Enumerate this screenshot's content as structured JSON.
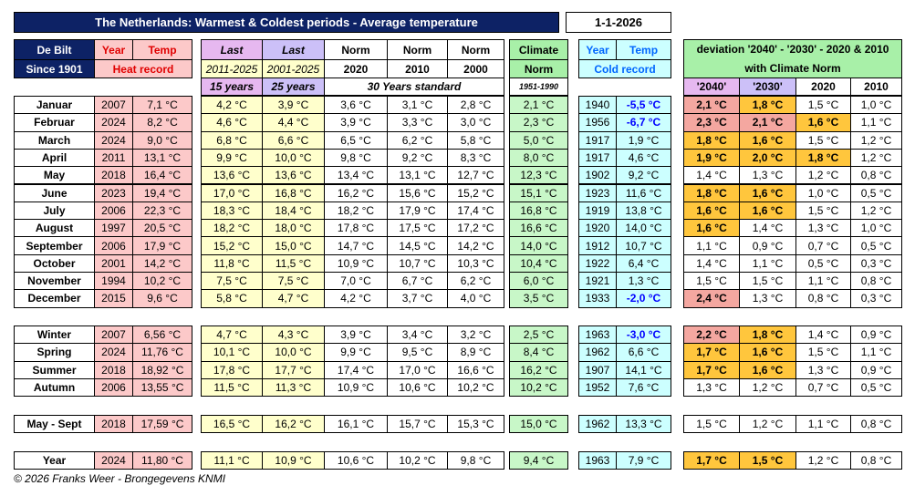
{
  "header": {
    "title": "The Netherlands:  Warmest & Coldest periods -  Average temperature",
    "date": "1-1-2026"
  },
  "columns": {
    "station": [
      "De Bilt",
      "Since 1901"
    ],
    "heat": [
      "Year",
      "Temp",
      "Heat record"
    ],
    "last15": [
      "Last",
      "2011-2025",
      "15 years"
    ],
    "last25": [
      "Last",
      "2001-2025",
      "25 years"
    ],
    "norms": [
      [
        "Norm",
        "2020"
      ],
      [
        "Norm",
        "2010"
      ],
      [
        "Norm",
        "2000"
      ]
    ],
    "norm_note": "30 Years standard",
    "climate": [
      "Climate",
      "Norm",
      "1951-1990"
    ],
    "cold": [
      "Year",
      "Temp",
      "Cold record"
    ],
    "deviation": [
      "deviation '2040' - '2030' - 2020  & 2010",
      "with Climate Norm"
    ],
    "deviation_cols": [
      "'2040'",
      "'2030'",
      "2020",
      "2010"
    ]
  },
  "table": {
    "groups": [
      {
        "rows": [
          {
            "cells": [
              "Januar",
              "2007",
              "7,1 °C",
              "4,2 °C",
              "3,9 °C",
              "3,6 °C",
              "3,1 °C",
              "2,8 °C",
              "2,1 °C",
              "1940",
              "-5,5 °C",
              "2,1 °C",
              "1,8 °C",
              "1,5 °C",
              "1,0 °C"
            ],
            "deviation_colors": [
              "#f4a7a0",
              "#ffc63d",
              null,
              null
            ],
            "cold_color": "#0000ff"
          },
          {
            "cells": [
              "Februar",
              "2024",
              "8,2 °C",
              "4,6 °C",
              "4,4 °C",
              "3,9 °C",
              "3,3 °C",
              "3,0 °C",
              "2,3 °C",
              "1956",
              "-6,7 °C",
              "2,3 °C",
              "2,1 °C",
              "1,6 °C",
              "1,1 °C"
            ],
            "deviation_colors": [
              "#f4a7a0",
              "#f4a7a0",
              "#ffc63d",
              null
            ],
            "cold_color": "#0000ff"
          },
          {
            "cells": [
              "March",
              "2024",
              "9,0 °C",
              "6,8 °C",
              "6,6 °C",
              "6,5 °C",
              "6,2 °C",
              "5,8 °C",
              "5,0 °C",
              "1917",
              "1,9 °C",
              "1,8 °C",
              "1,6 °C",
              "1,5 °C",
              "1,2 °C"
            ],
            "deviation_colors": [
              "#ffc63d",
              "#ffc63d",
              null,
              null
            ]
          },
          {
            "cells": [
              "April",
              "2011",
              "13,1 °C",
              "9,9 °C",
              "10,0 °C",
              "9,8 °C",
              "9,2 °C",
              "8,3 °C",
              "8,0 °C",
              "1917",
              "4,6 °C",
              "1,9 °C",
              "2,0 °C",
              "1,8 °C",
              "1,2 °C"
            ],
            "deviation_colors": [
              "#ffc63d",
              "#ffc63d",
              "#ffc63d",
              null
            ]
          },
          {
            "cells": [
              "May",
              "2018",
              "16,4 °C",
              "13,6 °C",
              "13,6 °C",
              "13,4 °C",
              "13,1 °C",
              "12,7 °C",
              "12,3 °C",
              "1902",
              "9,2 °C",
              "1,4 °C",
              "1,3 °C",
              "1,2 °C",
              "0,8 °C"
            ],
            "deviation_colors": [
              null,
              null,
              null,
              null
            ]
          },
          {
            "cells": [
              "June",
              "2023",
              "19,4 °C",
              "17,0 °C",
              "16,8 °C",
              "16,2 °C",
              "15,6 °C",
              "15,2 °C",
              "15,1 °C",
              "1923",
              "11,6 °C",
              "1,8 °C",
              "1,6 °C",
              "1,0 °C",
              "0,5 °C"
            ],
            "deviation_colors": [
              "#ffc63d",
              "#ffc63d",
              null,
              null
            ]
          },
          {
            "cells": [
              "July",
              "2006",
              "22,3 °C",
              "18,3 °C",
              "18,4 °C",
              "18,2 °C",
              "17,9 °C",
              "17,4 °C",
              "16,8 °C",
              "1919",
              "13,8 °C",
              "1,6 °C",
              "1,6 °C",
              "1,5 °C",
              "1,2 °C"
            ],
            "deviation_colors": [
              "#ffc63d",
              "#ffc63d",
              null,
              null
            ]
          },
          {
            "cells": [
              "August",
              "1997",
              "20,5 °C",
              "18,2 °C",
              "18,0 °C",
              "17,8 °C",
              "17,5 °C",
              "17,2 °C",
              "16,6 °C",
              "1920",
              "14,0 °C",
              "1,6 °C",
              "1,4 °C",
              "1,3 °C",
              "1,0 °C"
            ],
            "deviation_colors": [
              "#ffc63d",
              null,
              null,
              null
            ]
          },
          {
            "cells": [
              "September",
              "2006",
              "17,9 °C",
              "15,2 °C",
              "15,0 °C",
              "14,7 °C",
              "14,5 °C",
              "14,2 °C",
              "14,0 °C",
              "1912",
              "10,7 °C",
              "1,1 °C",
              "0,9 °C",
              "0,7 °C",
              "0,5 °C"
            ],
            "deviation_colors": [
              null,
              null,
              null,
              null
            ]
          },
          {
            "cells": [
              "October",
              "2001",
              "14,2 °C",
              "11,8 °C",
              "11,5 °C",
              "10,9 °C",
              "10,7 °C",
              "10,3 °C",
              "10,4 °C",
              "1922",
              "6,4 °C",
              "1,4 °C",
              "1,1 °C",
              "0,5 °C",
              "0,3 °C"
            ],
            "deviation_colors": [
              null,
              null,
              null,
              null
            ]
          },
          {
            "cells": [
              "November",
              "1994",
              "10,2 °C",
              "7,5 °C",
              "7,5 °C",
              "7,0 °C",
              "6,7 °C",
              "6,2 °C",
              "6,0 °C",
              "1921",
              "1,3 °C",
              "1,5 °C",
              "1,5 °C",
              "1,1 °C",
              "0,8 °C"
            ],
            "deviation_colors": [
              null,
              null,
              null,
              null
            ]
          },
          {
            "cells": [
              "December",
              "2015",
              "9,6 °C",
              "5,8 °C",
              "4,7 °C",
              "4,2 °C",
              "3,7 °C",
              "4,0 °C",
              "3,5 °C",
              "1933",
              "-2,0 °C",
              "2,4 °C",
              "1,3 °C",
              "0,8 °C",
              "0,3 °C"
            ],
            "deviation_colors": [
              "#f4a7a0",
              null,
              null,
              null
            ],
            "cold_color": "#0000ff"
          }
        ]
      },
      {
        "rows": [
          {
            "cells": [
              "Winter",
              "2007",
              "6,56 °C",
              "4,7 °C",
              "4,3 °C",
              "3,9 °C",
              "3,4 °C",
              "3,2 °C",
              "2,5 °C",
              "1963",
              "-3,0 °C",
              "2,2 °C",
              "1,8 °C",
              "1,4 °C",
              "0,9 °C"
            ],
            "deviation_colors": [
              "#f4a7a0",
              "#ffc63d",
              null,
              null
            ],
            "cold_color": "#0000ff"
          },
          {
            "cells": [
              "Spring",
              "2024",
              "11,76 °C",
              "10,1 °C",
              "10,0 °C",
              "9,9 °C",
              "9,5 °C",
              "8,9 °C",
              "8,4 °C",
              "1962",
              "6,6 °C",
              "1,7 °C",
              "1,6 °C",
              "1,5 °C",
              "1,1 °C"
            ],
            "deviation_colors": [
              "#ffc63d",
              "#ffc63d",
              null,
              null
            ]
          },
          {
            "cells": [
              "Summer",
              "2018",
              "18,92 °C",
              "17,8 °C",
              "17,7 °C",
              "17,4 °C",
              "17,0 °C",
              "16,6 °C",
              "16,2 °C",
              "1907",
              "14,1 °C",
              "1,7 °C",
              "1,6 °C",
              "1,3 °C",
              "0,9 °C"
            ],
            "deviation_colors": [
              "#ffc63d",
              "#ffc63d",
              null,
              null
            ]
          },
          {
            "cells": [
              "Autumn",
              "2006",
              "13,55 °C",
              "11,5 °C",
              "11,3 °C",
              "10,9 °C",
              "10,6 °C",
              "10,2 °C",
              "10,2 °C",
              "1952",
              "7,6 °C",
              "1,3 °C",
              "1,2 °C",
              "0,7 °C",
              "0,5 °C"
            ],
            "deviation_colors": [
              null,
              null,
              null,
              null
            ]
          }
        ]
      },
      {
        "rows": [
          {
            "cells": [
              "May - Sept",
              "2018",
              "17,59 °C",
              "16,5 °C",
              "16,2 °C",
              "16,1 °C",
              "15,7 °C",
              "15,3 °C",
              "15,0 °C",
              "1962",
              "13,3 °C",
              "1,5 °C",
              "1,2 °C",
              "1,1 °C",
              "0,8 °C"
            ],
            "deviation_colors": [
              null,
              null,
              null,
              null
            ]
          }
        ]
      },
      {
        "rows": [
          {
            "cells": [
              "Year",
              "2024",
              "11,80 °C",
              "11,1 °C",
              "10,9 °C",
              "10,6 °C",
              "10,2 °C",
              "9,8 °C",
              "9,4 °C",
              "1963",
              "7,9 °C",
              "1,7 °C",
              "1,5 °C",
              "1,2 °C",
              "0,8 °C"
            ],
            "deviation_colors": [
              "#ffc63d",
              "#ffc63d",
              null,
              null
            ]
          }
        ]
      }
    ]
  },
  "footer": "© 2026 Franks Weer - Brongegevens KNMI"
}
